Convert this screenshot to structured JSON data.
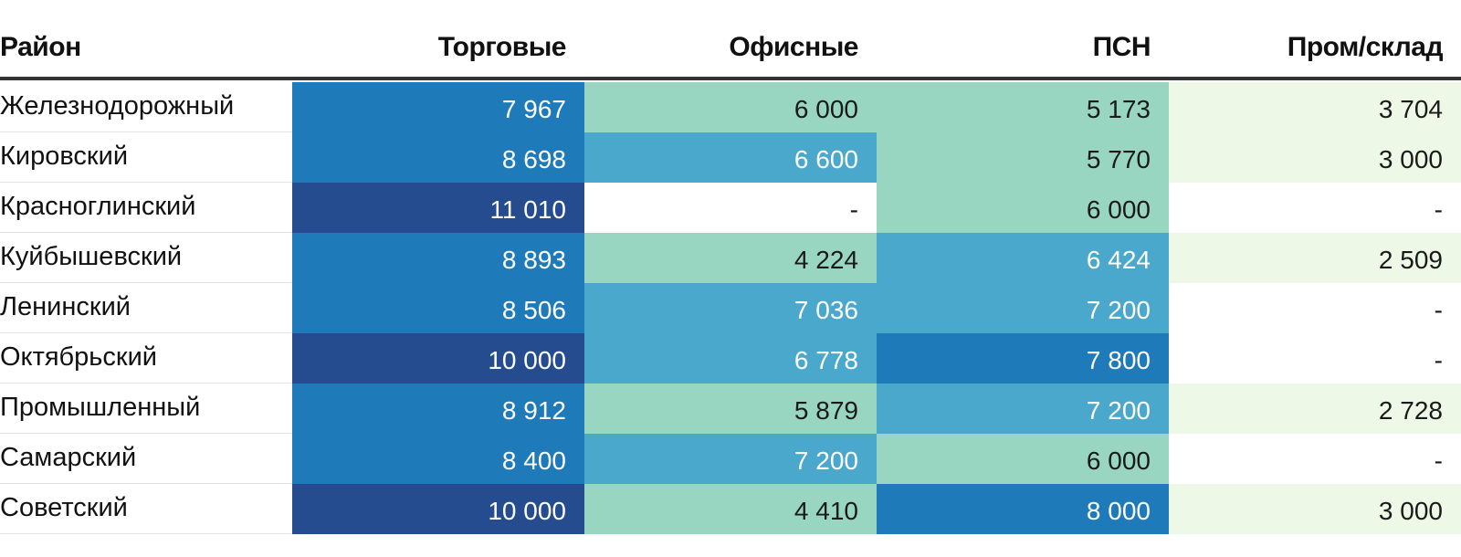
{
  "chart_data": {
    "type": "table",
    "columns": [
      "Район",
      "Торговые",
      "Офисные",
      "ПСН",
      "Пром/склад"
    ],
    "rows": [
      {
        "district": "Железнодорожный",
        "values": [
          "7 967",
          "6 000",
          "5 173",
          "3 704"
        ]
      },
      {
        "district": "Кировский",
        "values": [
          "8 698",
          "6 600",
          "5 770",
          "3 000"
        ]
      },
      {
        "district": "Красноглинский",
        "values": [
          "11 010",
          "-",
          "6 000",
          "-"
        ]
      },
      {
        "district": "Куйбышевский",
        "values": [
          "8 893",
          "4 224",
          "6 424",
          "2 509"
        ]
      },
      {
        "district": "Ленинский",
        "values": [
          "8 506",
          "7 036",
          "7 200",
          "-"
        ]
      },
      {
        "district": "Октябрьский",
        "values": [
          "10 000",
          "6 778",
          "7 800",
          "-"
        ]
      },
      {
        "district": "Промышленный",
        "values": [
          "8 912",
          "5 879",
          "7 200",
          "2 728"
        ]
      },
      {
        "district": "Самарский",
        "values": [
          "8 400",
          "7 200",
          "6 000",
          "-"
        ]
      },
      {
        "district": "Советский",
        "values": [
          "10 000",
          "4 410",
          "8 000",
          "3 000"
        ]
      }
    ],
    "color_scale": {
      "bins": [
        {
          "max": 0,
          "bg": "#ffffff",
          "fg": "#1a1a1a"
        },
        {
          "max": 4000,
          "bg": "#eef8e6",
          "fg": "#1a1a1a"
        },
        {
          "max": 6000,
          "bg": "#98d6c1",
          "fg": "#1a1a1a"
        },
        {
          "max": 7500,
          "bg": "#4aa8cc",
          "fg": "#ffffff"
        },
        {
          "max": 9500,
          "bg": "#1e7ab8",
          "fg": "#ffffff"
        },
        {
          "max": 1000000,
          "bg": "#244c8e",
          "fg": "#ffffff"
        }
      ]
    }
  }
}
